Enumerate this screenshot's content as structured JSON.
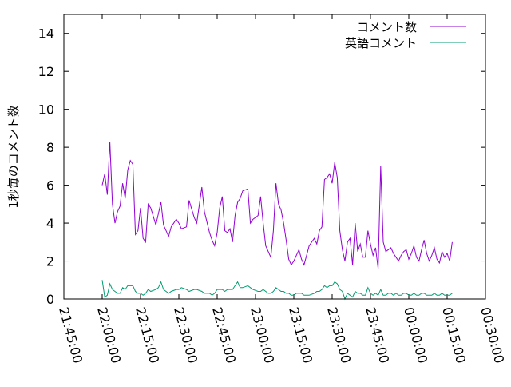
{
  "chart_data": {
    "type": "line",
    "title": "",
    "xlabel": "",
    "ylabel": "1秒毎のコメント数",
    "ylim": [
      0,
      15
    ],
    "yticks": [
      0,
      2,
      4,
      6,
      8,
      10,
      12,
      14
    ],
    "xlim": [
      "21:45:00",
      "00:30:00"
    ],
    "xticks": [
      "21:45:00",
      "22:00:00",
      "22:15:00",
      "22:30:00",
      "22:45:00",
      "23:00:00",
      "23:15:00",
      "23:30:00",
      "23:45:00",
      "00:00:00",
      "00:15:00",
      "00:30:00"
    ],
    "grid": false,
    "legend_position": "top-right",
    "series": [
      {
        "name": "コメント数",
        "color": "#9400d3",
        "x": [
          "22:00:00",
          "22:01:00",
          "22:02:00",
          "22:03:00",
          "22:04:00",
          "22:05:00",
          "22:06:00",
          "22:07:00",
          "22:08:00",
          "22:09:00",
          "22:10:00",
          "22:11:00",
          "22:12:00",
          "22:13:00",
          "22:14:00",
          "22:15:00",
          "22:16:00",
          "22:17:00",
          "22:18:00",
          "22:19:00",
          "22:21:00",
          "22:22:00",
          "22:23:00",
          "22:24:00",
          "22:26:00",
          "22:27:00",
          "22:29:00",
          "22:30:00",
          "22:31:00",
          "22:33:00",
          "22:34:00",
          "22:36:00",
          "22:37:00",
          "22:39:00",
          "22:40:00",
          "22:42:00",
          "22:43:00",
          "22:44:00",
          "22:45:00",
          "22:46:00",
          "22:47:00",
          "22:48:00",
          "22:49:00",
          "22:50:00",
          "22:51:00",
          "22:52:00",
          "22:53:00",
          "22:54:00",
          "22:55:00",
          "22:57:00",
          "22:58:00",
          "22:59:00",
          "23:01:00",
          "23:02:00",
          "23:03:00",
          "23:04:00",
          "23:05:00",
          "23:06:00",
          "23:07:00",
          "23:08:00",
          "23:09:00",
          "23:10:00",
          "23:11:00",
          "23:12:00",
          "23:13:00",
          "23:14:00",
          "23:15:00",
          "23:16:00",
          "23:17:00",
          "23:18:00",
          "23:19:00",
          "23:20:00",
          "23:21:00",
          "23:23:00",
          "23:24:00",
          "23:25:00",
          "23:26:00",
          "23:27:00",
          "23:28:00",
          "23:29:00",
          "23:30:00",
          "23:31:00",
          "23:32:00",
          "23:33:00",
          "23:34:00",
          "23:35:00",
          "23:36:00",
          "23:37:00",
          "23:38:00",
          "23:39:00",
          "23:40:00",
          "23:41:00",
          "23:42:00",
          "23:43:00",
          "23:44:00",
          "23:45:00",
          "23:46:00",
          "23:47:00",
          "23:48:00",
          "23:49:00",
          "23:50:00",
          "23:51:00",
          "23:52:00",
          "23:53:00",
          "23:54:00",
          "23:55:00",
          "23:56:00",
          "23:57:00",
          "23:58:00",
          "23:59:00",
          "00:00:00",
          "00:01:00",
          "00:02:00",
          "00:03:00",
          "00:04:00",
          "00:05:00",
          "00:06:00",
          "00:07:00",
          "00:08:00",
          "00:09:00",
          "00:10:00",
          "00:11:00",
          "00:12:00",
          "00:13:00",
          "00:14:00",
          "00:15:00",
          "00:16:00",
          "00:17:00"
        ],
        "values": [
          6.0,
          6.6,
          5.5,
          8.3,
          5.0,
          4.0,
          4.6,
          4.9,
          6.1,
          5.3,
          6.8,
          7.3,
          7.1,
          3.4,
          3.6,
          4.8,
          3.2,
          3.0,
          5.0,
          4.8,
          3.9,
          4.5,
          5.1,
          3.9,
          3.3,
          3.8,
          4.2,
          4.0,
          3.7,
          3.8,
          5.2,
          4.3,
          4.0,
          5.9,
          4.6,
          3.5,
          3.1,
          2.8,
          3.5,
          4.8,
          5.4,
          3.6,
          3.5,
          3.7,
          3.0,
          4.4,
          5.1,
          5.3,
          5.7,
          5.8,
          4.0,
          4.2,
          4.4,
          5.4,
          4.0,
          2.8,
          2.5,
          2.2,
          3.6,
          6.1,
          5.0,
          4.7,
          4.0,
          3.1,
          2.1,
          1.8,
          2.0,
          2.3,
          2.6,
          2.1,
          1.8,
          2.3,
          2.8,
          3.2,
          2.9,
          3.6,
          3.8,
          6.3,
          6.4,
          6.6,
          6.1,
          7.2,
          6.4,
          3.6,
          2.6,
          2.0,
          3.0,
          3.2,
          1.8,
          4.0,
          2.5,
          2.9,
          2.2,
          2.2,
          3.6,
          2.9,
          2.3,
          2.7,
          1.6,
          7.0,
          3.0,
          2.5,
          2.6,
          2.7,
          2.4,
          2.2,
          2.0,
          2.3,
          2.5,
          2.6,
          2.1,
          2.4,
          2.8,
          2.2,
          2.0,
          2.6,
          3.1,
          2.4,
          2.0,
          2.3,
          2.7,
          2.1,
          1.9,
          2.5,
          2.2,
          2.4,
          2.0,
          3.0
        ]
      },
      {
        "name": "英語コメント",
        "color": "#009e73",
        "x": [
          "22:00:00",
          "22:01:00",
          "22:02:00",
          "22:03:00",
          "22:04:00",
          "22:05:00",
          "22:06:00",
          "22:07:00",
          "22:08:00",
          "22:09:00",
          "22:10:00",
          "22:11:00",
          "22:12:00",
          "22:13:00",
          "22:14:00",
          "22:15:00",
          "22:16:00",
          "22:17:00",
          "22:18:00",
          "22:19:00",
          "22:21:00",
          "22:22:00",
          "22:23:00",
          "22:24:00",
          "22:26:00",
          "22:27:00",
          "22:29:00",
          "22:30:00",
          "22:31:00",
          "22:33:00",
          "22:34:00",
          "22:36:00",
          "22:37:00",
          "22:39:00",
          "22:40:00",
          "22:42:00",
          "22:43:00",
          "22:44:00",
          "22:45:00",
          "22:46:00",
          "22:47:00",
          "22:48:00",
          "22:49:00",
          "22:50:00",
          "22:51:00",
          "22:52:00",
          "22:53:00",
          "22:54:00",
          "22:55:00",
          "22:57:00",
          "22:58:00",
          "22:59:00",
          "23:01:00",
          "23:02:00",
          "23:03:00",
          "23:04:00",
          "23:05:00",
          "23:06:00",
          "23:07:00",
          "23:08:00",
          "23:09:00",
          "23:10:00",
          "23:11:00",
          "23:12:00",
          "23:13:00",
          "23:14:00",
          "23:15:00",
          "23:16:00",
          "23:17:00",
          "23:18:00",
          "23:19:00",
          "23:20:00",
          "23:21:00",
          "23:23:00",
          "23:24:00",
          "23:25:00",
          "23:26:00",
          "23:27:00",
          "23:28:00",
          "23:29:00",
          "23:30:00",
          "23:31:00",
          "23:32:00",
          "23:33:00",
          "23:34:00",
          "23:35:00",
          "23:36:00",
          "23:37:00",
          "23:38:00",
          "23:39:00",
          "23:40:00",
          "23:41:00",
          "23:42:00",
          "23:43:00",
          "23:44:00",
          "23:45:00",
          "23:46:00",
          "23:47:00",
          "23:48:00",
          "23:49:00",
          "23:50:00",
          "23:51:00",
          "23:52:00",
          "23:53:00",
          "23:54:00",
          "23:55:00",
          "23:56:00",
          "23:57:00",
          "23:58:00",
          "23:59:00",
          "00:00:00",
          "00:01:00",
          "00:02:00",
          "00:03:00",
          "00:04:00",
          "00:05:00",
          "00:06:00",
          "00:07:00",
          "00:08:00",
          "00:09:00",
          "00:10:00",
          "00:11:00",
          "00:12:00",
          "00:13:00",
          "00:14:00",
          "00:15:00",
          "00:16:00",
          "00:17:00"
        ],
        "values": [
          1.0,
          0.1,
          0.2,
          0.8,
          0.5,
          0.4,
          0.3,
          0.3,
          0.6,
          0.5,
          0.7,
          0.7,
          0.7,
          0.4,
          0.3,
          0.3,
          0.2,
          0.3,
          0.5,
          0.4,
          0.5,
          0.6,
          0.9,
          0.5,
          0.3,
          0.4,
          0.5,
          0.5,
          0.6,
          0.5,
          0.4,
          0.5,
          0.5,
          0.4,
          0.3,
          0.3,
          0.2,
          0.3,
          0.5,
          0.5,
          0.5,
          0.4,
          0.5,
          0.5,
          0.5,
          0.7,
          0.9,
          0.6,
          0.6,
          0.7,
          0.6,
          0.5,
          0.4,
          0.4,
          0.5,
          0.4,
          0.3,
          0.3,
          0.4,
          0.6,
          0.5,
          0.4,
          0.4,
          0.3,
          0.3,
          0.2,
          0.2,
          0.3,
          0.3,
          0.3,
          0.2,
          0.2,
          0.2,
          0.3,
          0.4,
          0.4,
          0.5,
          0.7,
          0.6,
          0.7,
          0.7,
          0.9,
          0.8,
          0.5,
          0.4,
          0.0,
          0.3,
          0.2,
          0.1,
          0.4,
          0.3,
          0.3,
          0.2,
          0.2,
          0.6,
          0.3,
          0.2,
          0.3,
          0.2,
          0.5,
          0.2,
          0.2,
          0.3,
          0.3,
          0.2,
          0.3,
          0.2,
          0.2,
          0.3,
          0.3,
          0.2,
          0.2,
          0.3,
          0.2,
          0.2,
          0.3,
          0.3,
          0.2,
          0.2,
          0.2,
          0.3,
          0.2,
          0.2,
          0.3,
          0.2,
          0.2,
          0.2,
          0.3
        ]
      }
    ]
  }
}
